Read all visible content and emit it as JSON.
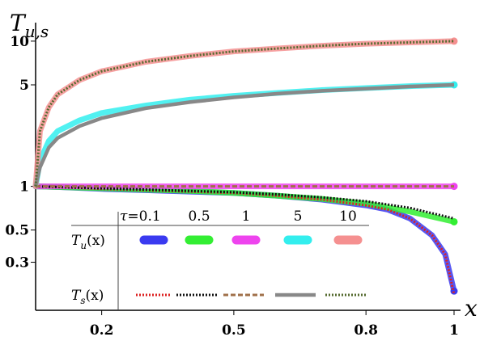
{
  "chart_data": {
    "type": "line",
    "ylabel": "T_{u,s}",
    "ylabel_main": "T",
    "ylabel_sub": "u,s",
    "xlabel": "x",
    "xlim": [
      0.05,
      1.0
    ],
    "ylim": [
      0.14,
      11.5
    ],
    "yscale": "log",
    "xticks": [
      0.2,
      0.5,
      0.8,
      1
    ],
    "xtick_labels": [
      "0.2",
      "0.5",
      "0.8",
      "1"
    ],
    "yticks": [
      10,
      5,
      1,
      0.5,
      0.3
    ],
    "ytick_labels": [
      "10",
      "5",
      "1",
      "0.5",
      "0.3"
    ],
    "grid": false,
    "legend": {
      "placement": "bottom-center",
      "header_symbol": "τ",
      "header_eq": "=",
      "taus": [
        "0.1",
        "0.5",
        "1",
        "5",
        "10"
      ],
      "row_u_main": "T",
      "row_u_sub": "u",
      "row_u_arg": "(x)",
      "row_s_main": "T",
      "row_s_sub": "s",
      "row_s_arg": "(x)"
    },
    "series": [
      {
        "tau": "0.1",
        "u_color": "#3a3af0",
        "s_color": "#dd2222",
        "s_style": "dotted",
        "x": [
          0.05,
          0.1,
          0.2,
          0.3,
          0.4,
          0.5,
          0.6,
          0.7,
          0.8,
          0.85,
          0.9,
          0.95,
          0.98,
          1.0
        ],
        "Tu": [
          1.0,
          0.99,
          0.96,
          0.94,
          0.92,
          0.9,
          0.86,
          0.81,
          0.74,
          0.69,
          0.6,
          0.46,
          0.34,
          0.19
        ],
        "Ts": [
          1.0,
          0.99,
          0.96,
          0.94,
          0.92,
          0.9,
          0.86,
          0.81,
          0.74,
          0.69,
          0.6,
          0.46,
          0.34,
          0.18
        ]
      },
      {
        "tau": "0.5",
        "u_color": "#33ee33",
        "s_color": "#111111",
        "s_style": "dotted",
        "x": [
          0.05,
          0.1,
          0.2,
          0.3,
          0.4,
          0.5,
          0.6,
          0.7,
          0.8,
          0.9,
          1.0
        ],
        "Tu": [
          1.0,
          0.99,
          0.97,
          0.95,
          0.93,
          0.9,
          0.86,
          0.82,
          0.76,
          0.67,
          0.57
        ],
        "Ts": [
          1.0,
          0.99,
          0.97,
          0.95,
          0.93,
          0.91,
          0.88,
          0.84,
          0.79,
          0.71,
          0.6
        ]
      },
      {
        "tau": "1",
        "u_color": "#ee44ee",
        "s_color": "#a0704a",
        "s_style": "dashed",
        "x": [
          0.05,
          0.2,
          0.4,
          0.6,
          0.8,
          1.0
        ],
        "Tu": [
          1.0,
          1.0,
          1.0,
          1.0,
          1.0,
          1.0
        ],
        "Ts": [
          1.0,
          1.0,
          1.0,
          1.0,
          1.0,
          1.0
        ]
      },
      {
        "tau": "5",
        "u_color": "#33eeee",
        "s_color": "#888888",
        "s_style": "solid",
        "x": [
          0.05,
          0.06,
          0.08,
          0.1,
          0.15,
          0.2,
          0.3,
          0.4,
          0.5,
          0.6,
          0.7,
          0.8,
          0.9,
          1.0
        ],
        "Tu": [
          1.0,
          1.5,
          2.05,
          2.4,
          2.85,
          3.2,
          3.6,
          3.95,
          4.2,
          4.4,
          4.6,
          4.75,
          4.9,
          5.0
        ],
        "Ts": [
          1.0,
          1.35,
          1.85,
          2.15,
          2.6,
          2.95,
          3.45,
          3.8,
          4.1,
          4.35,
          4.55,
          4.7,
          4.87,
          5.0
        ]
      },
      {
        "tau": "10",
        "u_color": "#f59090",
        "s_color": "#556b2f",
        "s_style": "dotted",
        "x": [
          0.05,
          0.06,
          0.08,
          0.1,
          0.15,
          0.2,
          0.3,
          0.4,
          0.5,
          0.6,
          0.7,
          0.8,
          0.9,
          1.0
        ],
        "Tu": [
          1.0,
          2.4,
          3.5,
          4.3,
          5.4,
          6.2,
          7.2,
          7.9,
          8.5,
          8.9,
          9.3,
          9.6,
          9.8,
          10.0
        ],
        "Ts": [
          1.0,
          2.4,
          3.5,
          4.3,
          5.4,
          6.2,
          7.2,
          7.9,
          8.5,
          8.9,
          9.3,
          9.6,
          9.8,
          10.0
        ]
      }
    ]
  }
}
